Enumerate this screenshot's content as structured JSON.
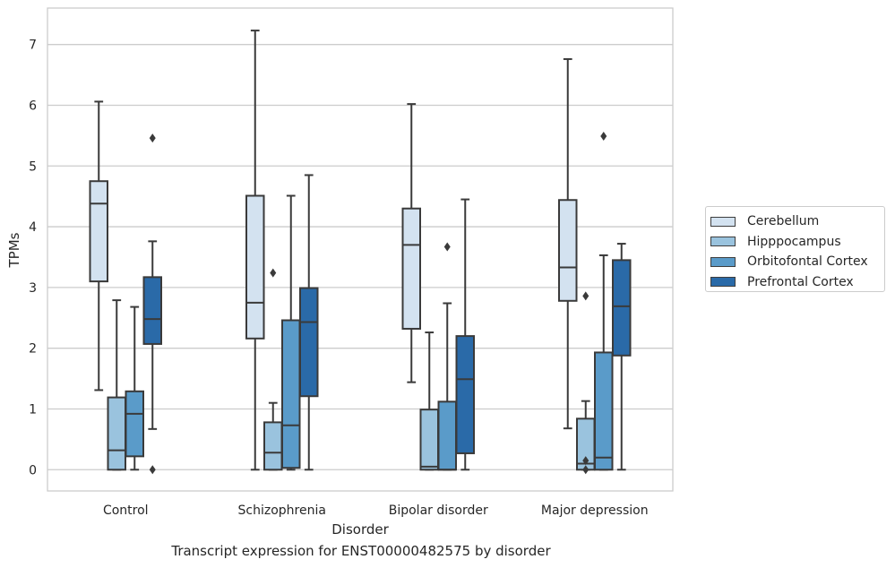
{
  "chart_data": {
    "type": "box",
    "title": "",
    "caption": "Transcript expression for ENST00000482575 by disorder",
    "xlabel": "Disorder",
    "ylabel": "TPMs",
    "ylim": [
      -0.35,
      7.6
    ],
    "yticks": [
      0,
      1,
      2,
      3,
      4,
      5,
      6,
      7
    ],
    "grid": true,
    "legend_position": "right",
    "categories": [
      "Control",
      "Schizophrenia",
      "Bipolar disorder",
      "Major depression"
    ],
    "series": [
      {
        "name": "Cerebellum",
        "color": "#d3e2f0",
        "boxes": [
          {
            "whislo": 1.31,
            "q1": 3.1,
            "med": 4.38,
            "q3": 4.75,
            "whishi": 6.06,
            "fliers": []
          },
          {
            "whislo": 0.0,
            "q1": 2.16,
            "med": 2.75,
            "q3": 4.51,
            "whishi": 7.23,
            "fliers": []
          },
          {
            "whislo": 1.44,
            "q1": 2.32,
            "med": 3.7,
            "q3": 4.3,
            "whishi": 6.02,
            "fliers": []
          },
          {
            "whislo": 0.68,
            "q1": 2.78,
            "med": 3.33,
            "q3": 4.44,
            "whishi": 6.76,
            "fliers": []
          }
        ]
      },
      {
        "name": "Hipppocampus",
        "color": "#9ac3de",
        "boxes": [
          {
            "whislo": 0.0,
            "q1": 0.0,
            "med": 0.32,
            "q3": 1.19,
            "whishi": 2.79,
            "fliers": []
          },
          {
            "whislo": 0.0,
            "q1": 0.0,
            "med": 0.28,
            "q3": 0.78,
            "whishi": 1.1,
            "fliers": [
              3.24
            ]
          },
          {
            "whislo": 0.0,
            "q1": 0.0,
            "med": 0.05,
            "q3": 0.99,
            "whishi": 2.26,
            "fliers": []
          },
          {
            "whislo": 0.0,
            "q1": 0.0,
            "med": 0.1,
            "q3": 0.84,
            "whishi": 1.13,
            "fliers": [
              0.15,
              0.0,
              2.86
            ]
          }
        ]
      },
      {
        "name": "Orbitofontal Cortex",
        "color": "#5a9bc9",
        "boxes": [
          {
            "whislo": 0.0,
            "q1": 0.22,
            "med": 0.92,
            "q3": 1.29,
            "whishi": 2.68,
            "fliers": []
          },
          {
            "whislo": 0.0,
            "q1": 0.03,
            "med": 0.73,
            "q3": 2.46,
            "whishi": 4.51,
            "fliers": []
          },
          {
            "whislo": 0.0,
            "q1": 0.0,
            "med": 0.0,
            "q3": 1.12,
            "whishi": 2.74,
            "fliers": [
              3.67
            ]
          },
          {
            "whislo": 0.0,
            "q1": 0.0,
            "med": 0.2,
            "q3": 1.93,
            "whishi": 3.53,
            "fliers": [
              5.49
            ]
          }
        ]
      },
      {
        "name": "Prefrontal Cortex",
        "color": "#2a6aa8",
        "boxes": [
          {
            "whislo": 0.67,
            "q1": 2.07,
            "med": 2.48,
            "q3": 3.17,
            "whishi": 3.76,
            "fliers": [
              5.46,
              0.0
            ]
          },
          {
            "whislo": 0.0,
            "q1": 1.21,
            "med": 2.43,
            "q3": 2.99,
            "whishi": 4.85,
            "fliers": []
          },
          {
            "whislo": 0.0,
            "q1": 0.27,
            "med": 1.49,
            "q3": 2.2,
            "whishi": 4.45,
            "fliers": []
          },
          {
            "whislo": 0.0,
            "q1": 1.88,
            "med": 2.69,
            "q3": 3.45,
            "whishi": 3.72,
            "fliers": []
          }
        ]
      }
    ]
  }
}
